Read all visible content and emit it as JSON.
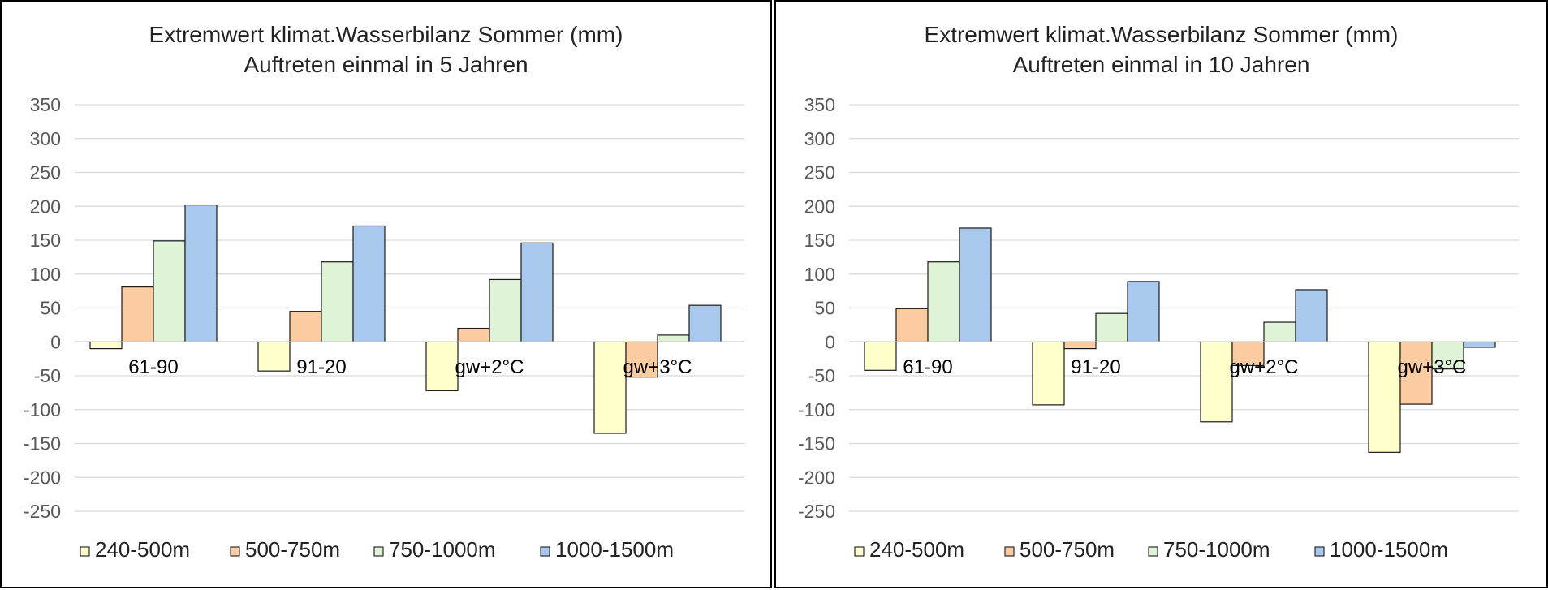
{
  "chart_data": [
    {
      "type": "bar",
      "title": [
        "Extremwert klimat.Wasserbilanz Sommer (mm)",
        "Auftreten einmal in 5 Jahren"
      ],
      "xlabel": "",
      "ylabel": "",
      "ylim": [
        -250,
        350
      ],
      "yticks": [
        350,
        300,
        250,
        200,
        150,
        100,
        50,
        0,
        -50,
        -100,
        -150,
        -200,
        -250
      ],
      "grid": true,
      "legend_position": "bottom",
      "categories": [
        "61-90",
        "91-20",
        "gw+2°C",
        "gw+3°C"
      ],
      "series": [
        {
          "name": "240-500m",
          "color": "#FFFFCC",
          "values": [
            -10,
            -43,
            -72,
            -135
          ]
        },
        {
          "name": "500-750m",
          "color": "#FBCBA1",
          "values": [
            81,
            45,
            20,
            -52
          ]
        },
        {
          "name": "750-1000m",
          "color": "#DFF3D6",
          "values": [
            149,
            118,
            92,
            10
          ]
        },
        {
          "name": "1000-1500m",
          "color": "#A9C8EE",
          "values": [
            202,
            171,
            146,
            54
          ]
        }
      ]
    },
    {
      "type": "bar",
      "title": [
        "Extremwert klimat.Wasserbilanz Sommer (mm)",
        "Auftreten einmal in 10 Jahren"
      ],
      "xlabel": "",
      "ylabel": "",
      "ylim": [
        -250,
        350
      ],
      "yticks": [
        350,
        300,
        250,
        200,
        150,
        100,
        50,
        0,
        -50,
        -100,
        -150,
        -200,
        -250
      ],
      "grid": true,
      "legend_position": "bottom",
      "categories": [
        "61-90",
        "91-20",
        "gw+2°C",
        "gw+3°C"
      ],
      "series": [
        {
          "name": "240-500m",
          "color": "#FFFFCC",
          "values": [
            -42,
            -93,
            -118,
            -163
          ]
        },
        {
          "name": "500-750m",
          "color": "#FBCBA1",
          "values": [
            49,
            -10,
            -35,
            -92
          ]
        },
        {
          "name": "750-1000m",
          "color": "#DFF3D6",
          "values": [
            118,
            42,
            29,
            -40
          ]
        },
        {
          "name": "1000-1500m",
          "color": "#A9C8EE",
          "values": [
            168,
            89,
            77,
            -8
          ]
        }
      ]
    }
  ]
}
